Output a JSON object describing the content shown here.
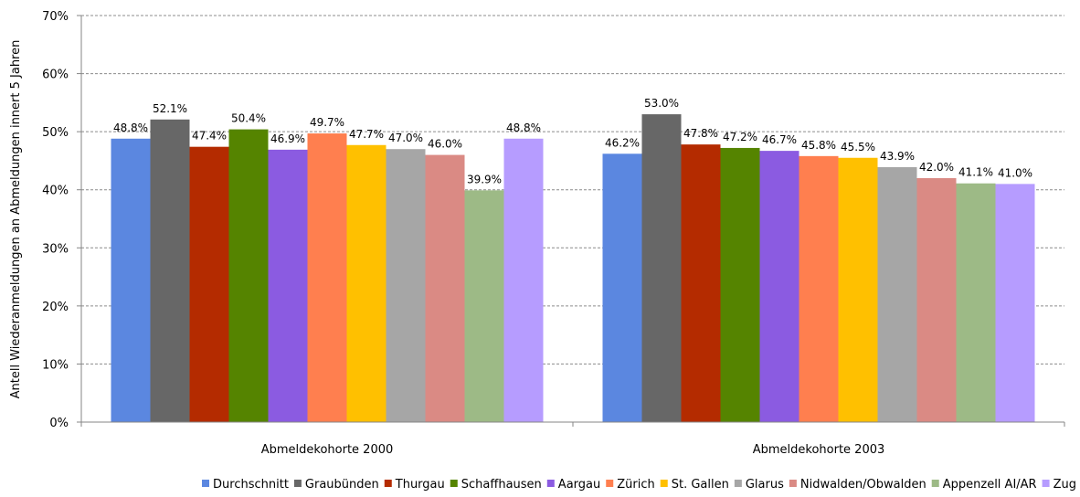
{
  "chart_data": {
    "type": "bar",
    "title": "",
    "xlabel": "",
    "ylabel": "Antell Wiederanmeldungen an Abmeldungen innert 5 Jahren",
    "ylim": [
      0,
      70
    ],
    "yticks": [
      "0%",
      "10%",
      "20%",
      "30%",
      "40%",
      "50%",
      "60%",
      "70%"
    ],
    "grid": "horizontal dashed",
    "legend_position": "bottom",
    "categories": [
      "Abmeldekohorte 2000",
      "Abmeldekohorte 2003"
    ],
    "series": [
      {
        "name": "Durchschnitt",
        "color": "#5b87e0",
        "values": [
          48.8,
          46.2
        ]
      },
      {
        "name": "Graubünden",
        "color": "#676767",
        "values": [
          52.1,
          53.0
        ]
      },
      {
        "name": "Thurgau",
        "color": "#b42b00",
        "values": [
          47.4,
          47.8
        ]
      },
      {
        "name": "Schaffhausen",
        "color": "#558400",
        "values": [
          50.4,
          47.2
        ]
      },
      {
        "name": "Aargau",
        "color": "#8b5be1",
        "values": [
          46.9,
          46.7
        ]
      },
      {
        "name": "Zürich",
        "color": "#ff7f4f",
        "values": [
          49.7,
          45.8
        ]
      },
      {
        "name": "St. Gallen",
        "color": "#ffc000",
        "values": [
          47.7,
          45.5
        ]
      },
      {
        "name": "Glarus",
        "color": "#a6a6a6",
        "values": [
          47.0,
          43.9
        ]
      },
      {
        "name": "Nidwalden/Obwalden",
        "color": "#da8a84",
        "values": [
          46.0,
          42.0
        ]
      },
      {
        "name": "Appenzell AI/AR",
        "color": "#9dba86",
        "values": [
          39.9,
          41.1
        ]
      },
      {
        "name": "Zug",
        "color": "#b69cff",
        "values": [
          48.8,
          41.0
        ]
      }
    ],
    "data_labels": [
      [
        "48.8%",
        "46.2%"
      ],
      [
        "52.1%",
        "53.0%"
      ],
      [
        "47.4%",
        "47.8%"
      ],
      [
        "50.4%",
        "47.2%"
      ],
      [
        "46.9%",
        "46.7%"
      ],
      [
        "49.7%",
        "45.8%"
      ],
      [
        "47.7%",
        "45.5%"
      ],
      [
        "47.0%",
        "43.9%"
      ],
      [
        "46.0%",
        "42.0%"
      ],
      [
        "39.9%",
        "41.1%"
      ],
      [
        "48.8%",
        "41.0%"
      ]
    ]
  }
}
